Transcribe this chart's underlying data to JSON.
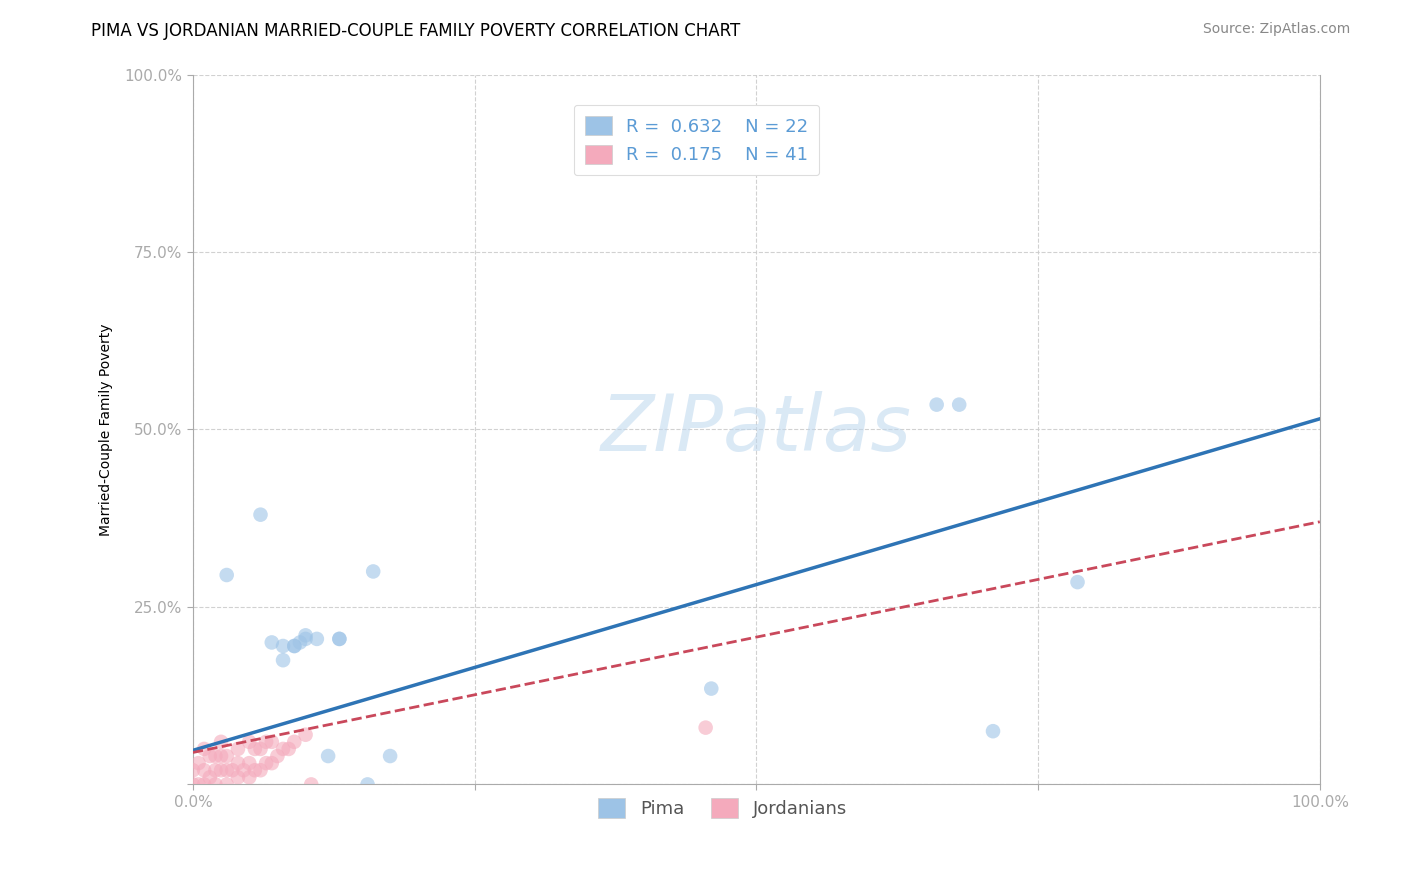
{
  "title": "PIMA VS JORDANIAN MARRIED-COUPLE FAMILY POVERTY CORRELATION CHART",
  "source": "Source: ZipAtlas.com",
  "ylabel": "Married-Couple Family Poverty",
  "watermark": "ZIPatlas",
  "pima_R": 0.632,
  "pima_N": 22,
  "jordan_R": 0.175,
  "jordan_N": 41,
  "pima_color": "#9DC3E6",
  "pima_line_color": "#2E74B5",
  "jordan_color": "#F4AABC",
  "jordan_line_color": "#C9485B",
  "background_color": "#ffffff",
  "grid_color": "#CCCCCC",
  "xlim": [
    0.0,
    1.0
  ],
  "ylim": [
    0.0,
    1.0
  ],
  "xticks": [
    0.0,
    0.25,
    0.5,
    0.75,
    1.0
  ],
  "yticks": [
    0.0,
    0.25,
    0.5,
    0.75,
    1.0
  ],
  "xtick_labels": [
    "0.0%",
    "",
    "",
    "",
    "100.0%"
  ],
  "ytick_labels": [
    "",
    "25.0%",
    "50.0%",
    "75.0%",
    "100.0%"
  ],
  "tick_color": "#5B9BD5",
  "pima_line_x": [
    0.0,
    1.0
  ],
  "pima_line_y": [
    0.048,
    0.515
  ],
  "jordan_line_x": [
    0.0,
    1.0
  ],
  "jordan_line_y": [
    0.045,
    0.37
  ],
  "pima_x": [
    0.03,
    0.06,
    0.07,
    0.08,
    0.08,
    0.09,
    0.09,
    0.095,
    0.1,
    0.1,
    0.11,
    0.12,
    0.13,
    0.13,
    0.155,
    0.16,
    0.175,
    0.46,
    0.66,
    0.68,
    0.71,
    0.785
  ],
  "pima_y": [
    0.295,
    0.38,
    0.2,
    0.195,
    0.175,
    0.195,
    0.195,
    0.2,
    0.21,
    0.205,
    0.205,
    0.04,
    0.205,
    0.205,
    0.0,
    0.3,
    0.04,
    0.135,
    0.535,
    0.535,
    0.075,
    0.285
  ],
  "jordan_x": [
    0.0,
    0.0,
    0.005,
    0.005,
    0.01,
    0.01,
    0.01,
    0.015,
    0.015,
    0.02,
    0.02,
    0.02,
    0.025,
    0.025,
    0.025,
    0.03,
    0.03,
    0.03,
    0.035,
    0.04,
    0.04,
    0.04,
    0.045,
    0.05,
    0.05,
    0.05,
    0.055,
    0.055,
    0.06,
    0.06,
    0.065,
    0.065,
    0.07,
    0.07,
    0.075,
    0.08,
    0.085,
    0.09,
    0.1,
    0.105,
    0.455
  ],
  "jordan_y": [
    0.0,
    0.02,
    0.0,
    0.03,
    0.0,
    0.02,
    0.05,
    0.01,
    0.04,
    0.0,
    0.02,
    0.04,
    0.02,
    0.04,
    0.06,
    0.0,
    0.02,
    0.04,
    0.02,
    0.01,
    0.03,
    0.05,
    0.02,
    0.01,
    0.03,
    0.06,
    0.02,
    0.05,
    0.02,
    0.05,
    0.03,
    0.06,
    0.03,
    0.06,
    0.04,
    0.05,
    0.05,
    0.06,
    0.07,
    0.0,
    0.08
  ],
  "title_fontsize": 12,
  "label_fontsize": 10,
  "tick_fontsize": 11,
  "legend_fontsize": 13,
  "source_fontsize": 10,
  "marker_size": 110,
  "marker_alpha": 0.6,
  "legend_label_pima": "R =  0.632    N = 22",
  "legend_label_jordan": "R =  0.175    N = 41",
  "bottom_legend_pima": "Pima",
  "bottom_legend_jordan": "Jordanians"
}
